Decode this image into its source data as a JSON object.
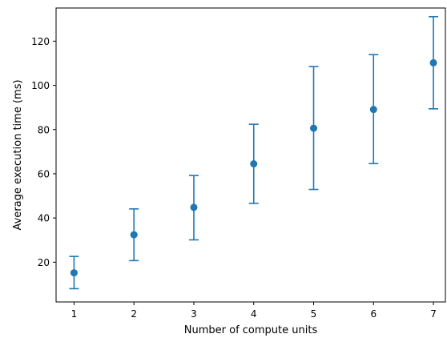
{
  "chart_data": {
    "type": "scatter",
    "title": "",
    "xlabel": "Number of compute units",
    "ylabel": "Average execution time (ms)",
    "x": [
      1,
      2,
      3,
      4,
      5,
      6,
      7
    ],
    "series": [
      {
        "values": [
          15.2,
          32.4,
          44.8,
          64.5,
          80.6,
          89.1,
          110.2
        ],
        "error_lower": [
          8.0,
          20.7,
          30.1,
          46.6,
          52.9,
          64.6,
          89.4
        ],
        "error_upper": [
          22.6,
          44.1,
          59.2,
          82.4,
          108.5,
          113.9,
          131.1
        ]
      }
    ],
    "xlim": [
      0.7,
      7.2
    ],
    "ylim": [
      2,
      135
    ],
    "xticks": [
      "1",
      "2",
      "3",
      "4",
      "5",
      "6",
      "7"
    ],
    "yticks": [
      "20",
      "40",
      "60",
      "80",
      "100",
      "120"
    ],
    "grid": false,
    "color": "#1f77b4"
  }
}
